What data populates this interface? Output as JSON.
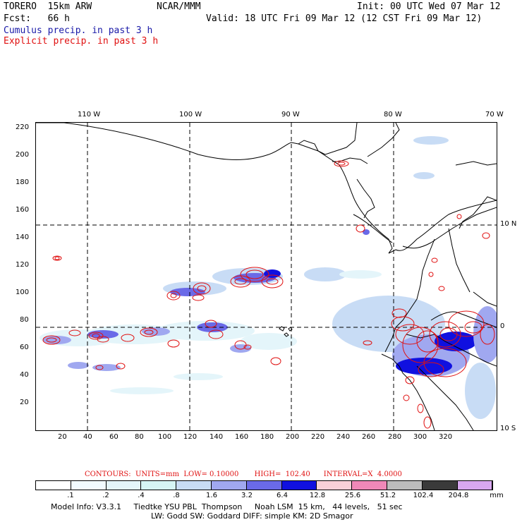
{
  "header": {
    "model": "TORERO  15km ARW",
    "org": "NCAR/MMM",
    "init": "Init: 00 UTC Wed 07 Mar 12",
    "fcst": "Fcst:   66 h",
    "valid": "Valid: 18 UTC Fri 09 Mar 12 (12 CST Fri 09 Mar 12)",
    "cumulus_label": "Cumulus precip. in past 3 h",
    "explicit_label": "Explicit precip. in past 3 h"
  },
  "colors": {
    "cumulus": "#1a1aa8",
    "explicit": "#e01010",
    "coast": "#000000",
    "grid": "#000000"
  },
  "axes": {
    "top_lon_labels": [
      "110 W",
      "100 W",
      "90 W",
      "80 W",
      "70 W"
    ],
    "right_lat_labels": [
      "10 N",
      "0",
      "10 S"
    ],
    "x_ticks": [
      "20",
      "40",
      "60",
      "80",
      "100",
      "120",
      "140",
      "160",
      "180",
      "200",
      "220",
      "240",
      "260",
      "280",
      "300",
      "320"
    ],
    "y_ticks": [
      "20",
      "40",
      "60",
      "80",
      "100",
      "120",
      "140",
      "160",
      "180",
      "200",
      "220"
    ]
  },
  "contours_line": "CONTOURS:  UNITS=mm  LOW= 0.10000       HIGH=  102.40      INTERVAL=X  4.0000",
  "colorbar": {
    "labels": [
      ".1",
      ".2",
      ".4",
      ".8",
      "1.6",
      "3.2",
      "6.4",
      "12.8",
      "25.6",
      "51.2",
      "102.4",
      "204.8"
    ],
    "unit": "mm",
    "colors": [
      "#ffffff",
      "#f2fbff",
      "#e4f5fa",
      "#d6f5f5",
      "#c8dcf5",
      "#a0a8f0",
      "#6a6ae8",
      "#1010e0",
      "#f8d0d8",
      "#f088b8",
      "#bcbcbc",
      "#3a3a3a",
      "#d8a8f0"
    ]
  },
  "footer": {
    "line1": "Model Info: V3.3.1     Tiedtke YSU PBL  Thompson     Noah LSM  15 km,   44 levels,   51 sec",
    "line2": "LW: Godd SW: Goddard DIFF: simple KM: 2D Smagor"
  }
}
